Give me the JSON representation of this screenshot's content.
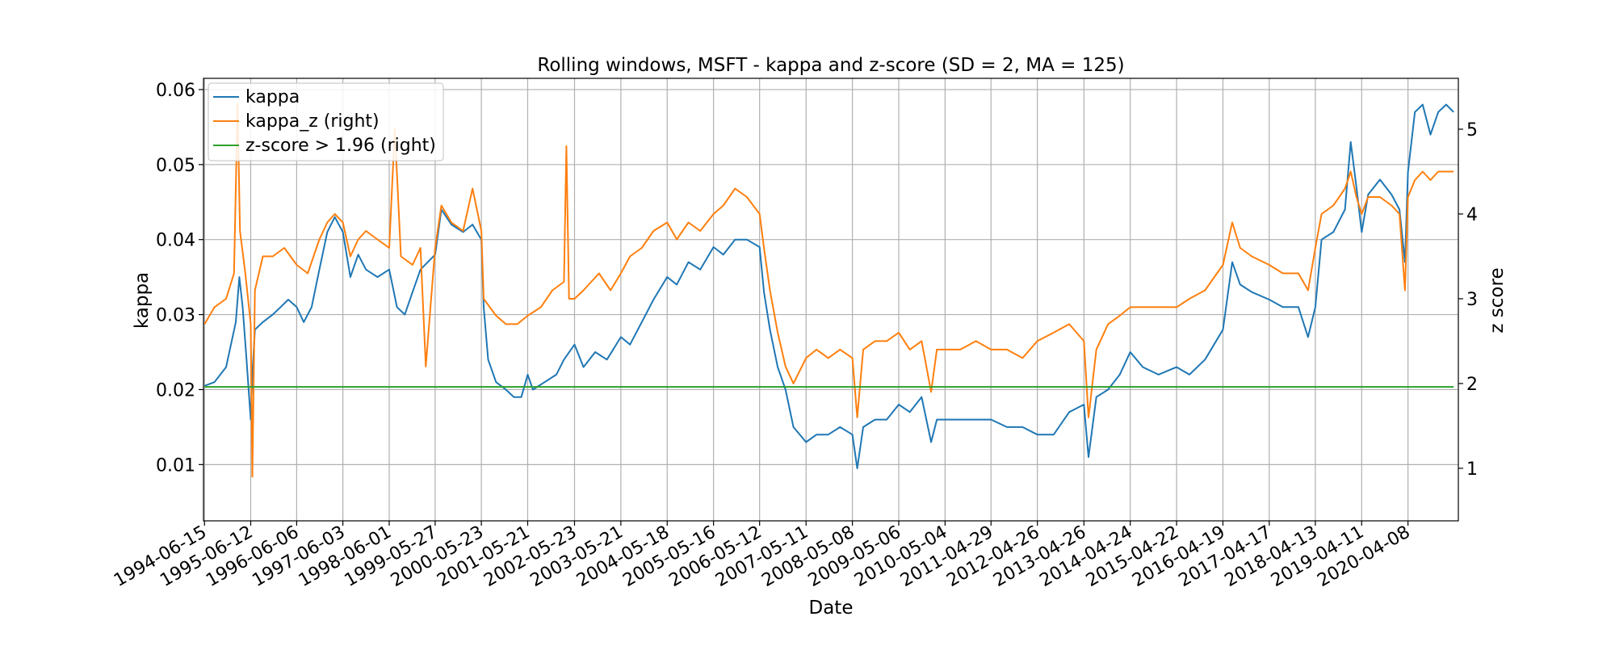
{
  "chart_data": {
    "type": "line",
    "title": "Rolling windows, MSFT - kappa and z-score (SD = 2, MA = 125)",
    "xlabel": "Date",
    "ylabel": "kappa",
    "ylabel_right": "z score",
    "ylim": [
      0.0025,
      0.0615
    ],
    "ylim_right": [
      0.38,
      5.6
    ],
    "y_ticks": [
      0.01,
      0.02,
      0.03,
      0.04,
      0.05,
      0.06
    ],
    "y_tick_labels": [
      "0.01",
      "0.02",
      "0.03",
      "0.04",
      "0.05",
      "0.06"
    ],
    "y_right_ticks": [
      1,
      2,
      3,
      4,
      5
    ],
    "y_right_tick_labels": [
      "1",
      "2",
      "3",
      "4",
      "5"
    ],
    "x_tick_labels": [
      "1994-06-15",
      "1995-06-12",
      "1996-06-06",
      "1997-06-03",
      "1998-06-01",
      "1999-05-27",
      "2000-05-23",
      "2001-05-21",
      "2002-05-23",
      "2003-05-21",
      "2004-05-18",
      "2005-05-16",
      "2006-05-12",
      "2007-05-11",
      "2008-05-08",
      "2009-05-06",
      "2010-05-04",
      "2011-04-29",
      "2012-04-26",
      "2013-04-26",
      "2014-04-24",
      "2015-04-22",
      "2016-04-19",
      "2017-04-17",
      "2018-04-13",
      "2019-04-11",
      "2020-04-08"
    ],
    "grid": true,
    "legend_position": "top-left",
    "series": [
      {
        "name": "kappa",
        "axis": "left",
        "color": "#1f77b4",
        "points": [
          [
            "1994-06-15",
            0.0205
          ],
          [
            "1994-09-01",
            0.021
          ],
          [
            "1994-12-01",
            0.023
          ],
          [
            "1995-02-15",
            0.029
          ],
          [
            "1995-03-15",
            0.035
          ],
          [
            "1995-04-10",
            0.031
          ],
          [
            "1995-05-10",
            0.024
          ],
          [
            "1995-06-12",
            0.016
          ],
          [
            "1995-06-25",
            0.022
          ],
          [
            "1995-07-15",
            0.028
          ],
          [
            "1995-09-15",
            0.029
          ],
          [
            "1995-12-01",
            0.03
          ],
          [
            "1996-02-01",
            0.031
          ],
          [
            "1996-04-01",
            0.032
          ],
          [
            "1996-06-06",
            0.031
          ],
          [
            "1996-08-01",
            0.029
          ],
          [
            "1996-10-01",
            0.031
          ],
          [
            "1996-12-01",
            0.036
          ],
          [
            "1997-02-01",
            0.041
          ],
          [
            "1997-04-01",
            0.043
          ],
          [
            "1997-06-03",
            0.041
          ],
          [
            "1997-08-01",
            0.035
          ],
          [
            "1997-10-01",
            0.038
          ],
          [
            "1997-12-01",
            0.036
          ],
          [
            "1998-03-01",
            0.035
          ],
          [
            "1998-06-01",
            0.036
          ],
          [
            "1998-08-01",
            0.031
          ],
          [
            "1998-10-01",
            0.03
          ],
          [
            "1998-12-01",
            0.033
          ],
          [
            "1999-02-01",
            0.036
          ],
          [
            "1999-05-27",
            0.038
          ],
          [
            "1999-07-15",
            0.044
          ],
          [
            "1999-10-01",
            0.042
          ],
          [
            "2000-01-01",
            0.041
          ],
          [
            "2000-03-15",
            0.042
          ],
          [
            "2000-05-23",
            0.04
          ],
          [
            "2000-06-10",
            0.031
          ],
          [
            "2000-07-15",
            0.024
          ],
          [
            "2000-09-15",
            0.021
          ],
          [
            "2000-12-01",
            0.02
          ],
          [
            "2001-02-01",
            0.019
          ],
          [
            "2001-04-01",
            0.019
          ],
          [
            "2001-05-21",
            0.022
          ],
          [
            "2001-07-01",
            0.02
          ],
          [
            "2001-10-01",
            0.021
          ],
          [
            "2002-01-01",
            0.022
          ],
          [
            "2002-03-01",
            0.024
          ],
          [
            "2002-05-23",
            0.026
          ],
          [
            "2002-08-01",
            0.023
          ],
          [
            "2002-11-01",
            0.025
          ],
          [
            "2003-02-01",
            0.024
          ],
          [
            "2003-05-21",
            0.027
          ],
          [
            "2003-08-01",
            0.026
          ],
          [
            "2003-11-01",
            0.029
          ],
          [
            "2004-02-01",
            0.032
          ],
          [
            "2004-05-18",
            0.035
          ],
          [
            "2004-08-01",
            0.034
          ],
          [
            "2004-11-01",
            0.037
          ],
          [
            "2005-02-01",
            0.036
          ],
          [
            "2005-05-16",
            0.039
          ],
          [
            "2005-08-01",
            0.038
          ],
          [
            "2005-11-01",
            0.04
          ],
          [
            "2006-02-01",
            0.04
          ],
          [
            "2006-05-12",
            0.039
          ],
          [
            "2006-06-15",
            0.033
          ],
          [
            "2006-08-01",
            0.028
          ],
          [
            "2006-10-01",
            0.023
          ],
          [
            "2006-12-01",
            0.02
          ],
          [
            "2007-02-01",
            0.015
          ],
          [
            "2007-05-11",
            0.013
          ],
          [
            "2007-08-01",
            0.014
          ],
          [
            "2007-11-01",
            0.014
          ],
          [
            "2008-02-01",
            0.015
          ],
          [
            "2008-05-08",
            0.014
          ],
          [
            "2008-06-15",
            0.0095
          ],
          [
            "2008-08-01",
            0.015
          ],
          [
            "2008-11-01",
            0.016
          ],
          [
            "2009-02-01",
            0.016
          ],
          [
            "2009-05-06",
            0.018
          ],
          [
            "2009-08-01",
            0.017
          ],
          [
            "2009-11-01",
            0.019
          ],
          [
            "2010-01-15",
            0.013
          ],
          [
            "2010-03-01",
            0.016
          ],
          [
            "2010-05-04",
            0.016
          ],
          [
            "2010-09-01",
            0.016
          ],
          [
            "2011-01-01",
            0.016
          ],
          [
            "2011-04-29",
            0.016
          ],
          [
            "2011-09-01",
            0.015
          ],
          [
            "2012-01-01",
            0.015
          ],
          [
            "2012-04-26",
            0.014
          ],
          [
            "2012-09-01",
            0.014
          ],
          [
            "2013-01-01",
            0.017
          ],
          [
            "2013-04-26",
            0.018
          ],
          [
            "2013-06-01",
            0.011
          ],
          [
            "2013-08-01",
            0.019
          ],
          [
            "2013-11-01",
            0.02
          ],
          [
            "2014-02-01",
            0.022
          ],
          [
            "2014-04-24",
            0.025
          ],
          [
            "2014-08-01",
            0.023
          ],
          [
            "2014-12-01",
            0.022
          ],
          [
            "2015-04-22",
            0.023
          ],
          [
            "2015-08-01",
            0.022
          ],
          [
            "2015-12-01",
            0.024
          ],
          [
            "2016-04-19",
            0.028
          ],
          [
            "2016-07-01",
            0.037
          ],
          [
            "2016-09-01",
            0.034
          ],
          [
            "2016-12-01",
            0.033
          ],
          [
            "2017-04-17",
            0.032
          ],
          [
            "2017-08-01",
            0.031
          ],
          [
            "2017-12-01",
            0.031
          ],
          [
            "2018-02-15",
            0.027
          ],
          [
            "2018-04-13",
            0.031
          ],
          [
            "2018-06-01",
            0.04
          ],
          [
            "2018-09-01",
            0.041
          ],
          [
            "2018-12-01",
            0.044
          ],
          [
            "2019-01-15",
            0.053
          ],
          [
            "2019-03-01",
            0.047
          ],
          [
            "2019-04-11",
            0.041
          ],
          [
            "2019-06-01",
            0.046
          ],
          [
            "2019-09-01",
            0.048
          ],
          [
            "2019-12-01",
            0.046
          ],
          [
            "2020-02-01",
            0.044
          ],
          [
            "2020-03-15",
            0.037
          ],
          [
            "2020-04-08",
            0.049
          ],
          [
            "2020-06-01",
            0.057
          ],
          [
            "2020-08-01",
            0.058
          ],
          [
            "2020-10-01",
            0.054
          ],
          [
            "2020-12-01",
            0.057
          ],
          [
            "2021-02-01",
            0.058
          ],
          [
            "2021-04-01",
            0.057
          ]
        ]
      },
      {
        "name": "kappa_z (right)",
        "axis": "right",
        "color": "#ff7f0e",
        "points": [
          [
            "1994-06-15",
            2.7
          ],
          [
            "1994-09-01",
            2.9
          ],
          [
            "1994-12-01",
            3.0
          ],
          [
            "1995-02-01",
            3.3
          ],
          [
            "1995-03-01",
            5.3
          ],
          [
            "1995-03-20",
            3.8
          ],
          [
            "1995-05-01",
            3.3
          ],
          [
            "1995-06-12",
            2.7
          ],
          [
            "1995-06-25",
            0.9
          ],
          [
            "1995-07-15",
            3.1
          ],
          [
            "1995-09-15",
            3.5
          ],
          [
            "1995-12-01",
            3.5
          ],
          [
            "1996-03-01",
            3.6
          ],
          [
            "1996-06-06",
            3.4
          ],
          [
            "1996-09-01",
            3.3
          ],
          [
            "1996-12-01",
            3.7
          ],
          [
            "1997-02-01",
            3.9
          ],
          [
            "1997-04-01",
            4.0
          ],
          [
            "1997-06-03",
            3.9
          ],
          [
            "1997-08-01",
            3.5
          ],
          [
            "1997-10-01",
            3.7
          ],
          [
            "1997-12-01",
            3.8
          ],
          [
            "1998-03-01",
            3.7
          ],
          [
            "1998-06-01",
            3.6
          ],
          [
            "1998-07-15",
            5.0
          ],
          [
            "1998-09-01",
            3.5
          ],
          [
            "1998-12-01",
            3.4
          ],
          [
            "1999-02-01",
            3.6
          ],
          [
            "1999-03-15",
            2.2
          ],
          [
            "1999-05-27",
            3.6
          ],
          [
            "1999-07-15",
            4.1
          ],
          [
            "1999-10-01",
            3.9
          ],
          [
            "2000-01-01",
            3.8
          ],
          [
            "2000-03-15",
            4.3
          ],
          [
            "2000-05-23",
            3.8
          ],
          [
            "2000-06-10",
            3.0
          ],
          [
            "2000-09-15",
            2.8
          ],
          [
            "2000-12-01",
            2.7
          ],
          [
            "2001-03-01",
            2.7
          ],
          [
            "2001-05-21",
            2.8
          ],
          [
            "2001-09-01",
            2.9
          ],
          [
            "2001-12-01",
            3.1
          ],
          [
            "2002-03-01",
            3.2
          ],
          [
            "2002-03-20",
            4.8
          ],
          [
            "2002-04-10",
            3.0
          ],
          [
            "2002-05-23",
            3.0
          ],
          [
            "2002-08-01",
            3.1
          ],
          [
            "2002-12-01",
            3.3
          ],
          [
            "2003-03-01",
            3.1
          ],
          [
            "2003-05-21",
            3.3
          ],
          [
            "2003-08-01",
            3.5
          ],
          [
            "2003-11-01",
            3.6
          ],
          [
            "2004-02-01",
            3.8
          ],
          [
            "2004-05-18",
            3.9
          ],
          [
            "2004-08-01",
            3.7
          ],
          [
            "2004-11-01",
            3.9
          ],
          [
            "2005-02-01",
            3.8
          ],
          [
            "2005-05-16",
            4.0
          ],
          [
            "2005-08-01",
            4.1
          ],
          [
            "2005-11-01",
            4.3
          ],
          [
            "2006-02-01",
            4.2
          ],
          [
            "2006-05-12",
            4.0
          ],
          [
            "2006-06-15",
            3.6
          ],
          [
            "2006-08-01",
            3.1
          ],
          [
            "2006-10-01",
            2.6
          ],
          [
            "2006-12-01",
            2.2
          ],
          [
            "2007-02-01",
            2.0
          ],
          [
            "2007-05-11",
            2.3
          ],
          [
            "2007-08-01",
            2.4
          ],
          [
            "2007-11-01",
            2.3
          ],
          [
            "2008-02-01",
            2.4
          ],
          [
            "2008-05-08",
            2.3
          ],
          [
            "2008-06-15",
            1.6
          ],
          [
            "2008-08-01",
            2.4
          ],
          [
            "2008-11-01",
            2.5
          ],
          [
            "2009-02-01",
            2.5
          ],
          [
            "2009-05-06",
            2.6
          ],
          [
            "2009-08-01",
            2.4
          ],
          [
            "2009-11-01",
            2.5
          ],
          [
            "2010-01-15",
            1.9
          ],
          [
            "2010-03-01",
            2.4
          ],
          [
            "2010-05-04",
            2.4
          ],
          [
            "2010-09-01",
            2.4
          ],
          [
            "2011-01-01",
            2.5
          ],
          [
            "2011-04-29",
            2.4
          ],
          [
            "2011-09-01",
            2.4
          ],
          [
            "2012-01-01",
            2.3
          ],
          [
            "2012-04-26",
            2.5
          ],
          [
            "2012-09-01",
            2.6
          ],
          [
            "2013-01-01",
            2.7
          ],
          [
            "2013-04-26",
            2.5
          ],
          [
            "2013-06-01",
            1.6
          ],
          [
            "2013-08-01",
            2.4
          ],
          [
            "2013-11-01",
            2.7
          ],
          [
            "2014-02-01",
            2.8
          ],
          [
            "2014-04-24",
            2.9
          ],
          [
            "2014-08-01",
            2.9
          ],
          [
            "2014-12-01",
            2.9
          ],
          [
            "2015-04-22",
            2.9
          ],
          [
            "2015-08-01",
            3.0
          ],
          [
            "2015-12-01",
            3.1
          ],
          [
            "2016-04-19",
            3.4
          ],
          [
            "2016-07-01",
            3.9
          ],
          [
            "2016-09-01",
            3.6
          ],
          [
            "2016-12-01",
            3.5
          ],
          [
            "2017-04-17",
            3.4
          ],
          [
            "2017-08-01",
            3.3
          ],
          [
            "2017-12-01",
            3.3
          ],
          [
            "2018-02-15",
            3.1
          ],
          [
            "2018-04-13",
            3.6
          ],
          [
            "2018-06-01",
            4.0
          ],
          [
            "2018-09-01",
            4.1
          ],
          [
            "2018-12-01",
            4.3
          ],
          [
            "2019-01-15",
            4.5
          ],
          [
            "2019-03-01",
            4.2
          ],
          [
            "2019-04-11",
            4.0
          ],
          [
            "2019-06-01",
            4.2
          ],
          [
            "2019-09-01",
            4.2
          ],
          [
            "2019-12-01",
            4.1
          ],
          [
            "2020-02-01",
            4.0
          ],
          [
            "2020-03-15",
            3.1
          ],
          [
            "2020-04-08",
            4.2
          ],
          [
            "2020-06-01",
            4.4
          ],
          [
            "2020-08-01",
            4.5
          ],
          [
            "2020-10-01",
            4.4
          ],
          [
            "2020-12-01",
            4.5
          ],
          [
            "2021-02-01",
            4.5
          ],
          [
            "2021-04-01",
            4.5
          ]
        ]
      },
      {
        "name": "z-score > 1.96 (right)",
        "axis": "right",
        "color": "#2ca02c",
        "points": [
          [
            "1994-06-15",
            1.96
          ],
          [
            "2021-04-01",
            1.96
          ]
        ]
      }
    ]
  }
}
